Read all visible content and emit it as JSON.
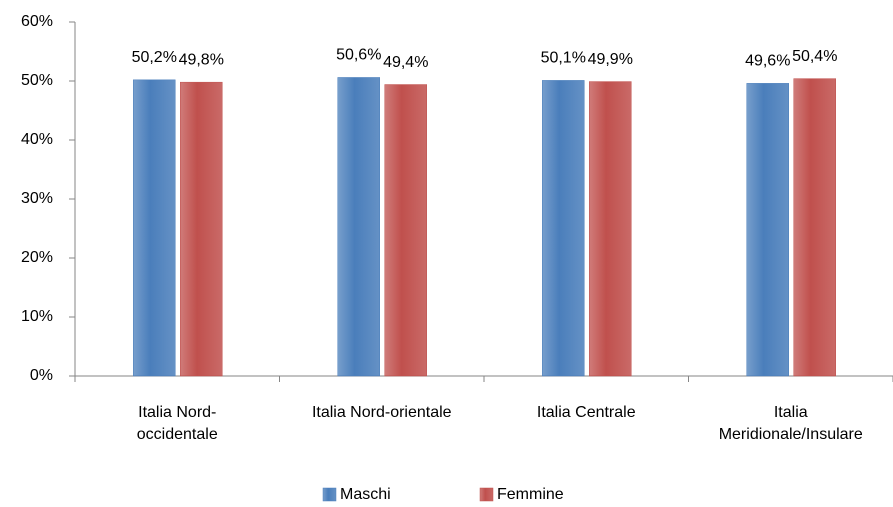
{
  "chart_data": {
    "type": "bar",
    "categories": [
      "Italia Nord-\noccidentale",
      "Italia Nord-orientale",
      "Italia Centrale",
      "Italia\nMeridionale/Insulare"
    ],
    "series": [
      {
        "name": "Maschi",
        "color": "#4a7ebb",
        "values": [
          50.2,
          50.6,
          50.1,
          49.6
        ],
        "value_labels": [
          "50,2%",
          "50,6%",
          "50,1%",
          "49,6%"
        ]
      },
      {
        "name": "Femmine",
        "color": "#c0504d",
        "values": [
          49.8,
          49.4,
          49.9,
          50.4
        ],
        "value_labels": [
          "49,8%",
          "49,4%",
          "49,9%",
          "50,4%"
        ]
      }
    ],
    "ylim": [
      0,
      60
    ],
    "yticks": [
      {
        "value": 0,
        "label": "0%"
      },
      {
        "value": 10,
        "label": "10%"
      },
      {
        "value": 20,
        "label": "20%"
      },
      {
        "value": 30,
        "label": "30%"
      },
      {
        "value": 40,
        "label": "40%"
      },
      {
        "value": 50,
        "label": "50%"
      },
      {
        "value": 60,
        "label": "60%"
      }
    ],
    "legend": "bottom"
  }
}
